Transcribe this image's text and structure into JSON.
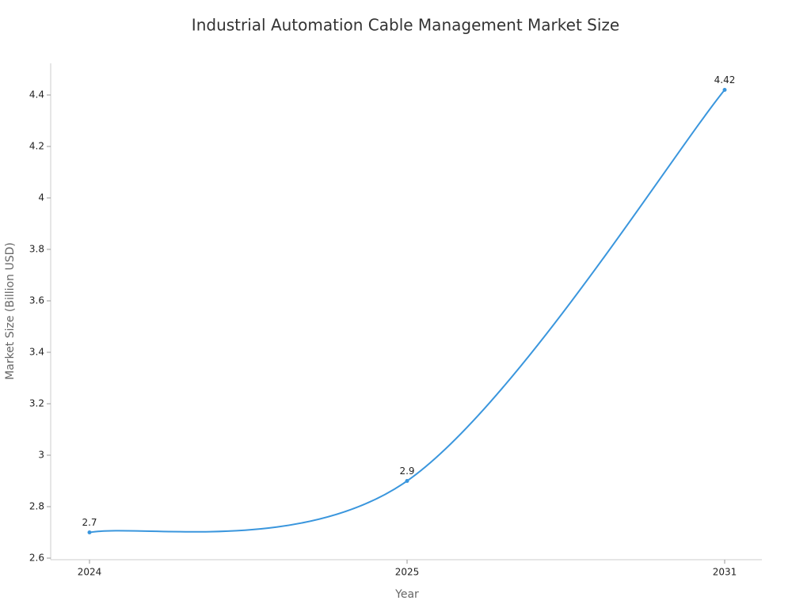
{
  "chart_data": {
    "type": "line",
    "title": "Industrial Automation Cable Management Market Size",
    "x_label": "Year",
    "y_label": "Market Size (Billion USD)",
    "categories": [
      "2024",
      "2025",
      "2031"
    ],
    "series": [
      {
        "name": "Market Size",
        "color": "#3a96dd",
        "values": [
          2.7,
          2.9,
          4.42
        ]
      }
    ],
    "ylim": [
      2.6,
      4.52
    ],
    "yticks": [
      2.6,
      2.8,
      3,
      3.2,
      3.4,
      3.6,
      3.8,
      4,
      4.2,
      4.4
    ],
    "smooth": true,
    "grid": false
  }
}
